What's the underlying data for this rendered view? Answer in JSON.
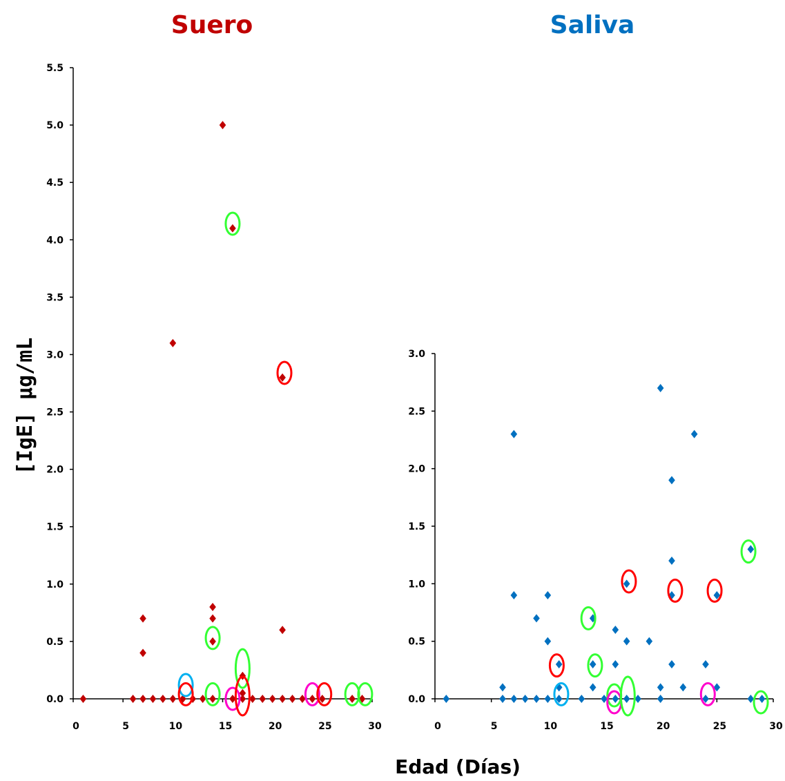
{
  "colors": {
    "serum": "#c00000",
    "saliva": "#0070c0",
    "ring_red": "#ff0000",
    "ring_green": "#33ff33",
    "ring_cyan": "#00b0f0",
    "ring_magenta": "#ff00cc"
  },
  "labels": {
    "ylabel": "[IgE] µg/mL",
    "xlabel": "Edad (Días)"
  },
  "chart_data": [
    {
      "type": "scatter",
      "title": "Suero",
      "title_color": "#c00000",
      "point_color": "#c00000",
      "xlim": [
        0,
        30
      ],
      "ylim": [
        0,
        5.5
      ],
      "xticks": [
        "0",
        "5",
        "10",
        "15",
        "20",
        "25",
        "30"
      ],
      "yticks": [
        "0.0",
        "0.5",
        "1.0",
        "1.5",
        "2.0",
        "2.5",
        "3.0",
        "3.5",
        "4.0",
        "4.5",
        "5.0",
        "5.5"
      ],
      "points": [
        [
          1,
          0
        ],
        [
          6,
          0
        ],
        [
          7,
          0
        ],
        [
          8,
          0
        ],
        [
          9,
          0
        ],
        [
          10,
          0
        ],
        [
          11,
          0
        ],
        [
          12,
          0
        ],
        [
          13,
          0
        ],
        [
          14,
          0
        ],
        [
          16,
          0
        ],
        [
          17,
          0
        ],
        [
          18,
          0
        ],
        [
          19,
          0
        ],
        [
          20,
          0
        ],
        [
          21,
          0
        ],
        [
          22,
          0
        ],
        [
          23,
          0
        ],
        [
          24,
          0
        ],
        [
          25,
          0
        ],
        [
          28,
          0
        ],
        [
          29,
          0
        ],
        [
          7,
          0.4
        ],
        [
          7,
          0.7
        ],
        [
          10,
          3.1
        ],
        [
          14,
          0.5
        ],
        [
          14,
          0.7
        ],
        [
          14,
          0.8
        ],
        [
          15,
          5.0
        ],
        [
          16,
          4.1
        ],
        [
          17,
          0.05
        ],
        [
          17,
          0.2
        ],
        [
          21,
          2.8
        ],
        [
          21,
          0.6
        ]
      ],
      "highlight_rings": [
        {
          "x": 16,
          "y": 4.14,
          "color": "green",
          "tall": false
        },
        {
          "x": 21.2,
          "y": 2.84,
          "color": "red",
          "tall": false
        },
        {
          "x": 14,
          "y": 0.53,
          "color": "green",
          "tall": false
        },
        {
          "x": 17,
          "y": 0.24,
          "color": "green",
          "tall": true
        },
        {
          "x": 11.3,
          "y": 0.12,
          "color": "cyan",
          "tall": false
        },
        {
          "x": 11.3,
          "y": 0.04,
          "color": "red",
          "tall": false
        },
        {
          "x": 14,
          "y": 0.04,
          "color": "green",
          "tall": false
        },
        {
          "x": 16,
          "y": 0.0,
          "color": "magenta",
          "tall": false
        },
        {
          "x": 17,
          "y": 0.0,
          "color": "red",
          "tall": true
        },
        {
          "x": 24,
          "y": 0.04,
          "color": "magenta",
          "tall": false
        },
        {
          "x": 25.2,
          "y": 0.04,
          "color": "red",
          "tall": false
        },
        {
          "x": 28,
          "y": 0.04,
          "color": "green",
          "tall": false
        },
        {
          "x": 29.3,
          "y": 0.04,
          "color": "green",
          "tall": false
        }
      ]
    },
    {
      "type": "scatter",
      "title": "Saliva",
      "title_color": "#0070c0",
      "point_color": "#0070c0",
      "xlim": [
        0,
        30
      ],
      "ylim": [
        0,
        3.0
      ],
      "xticks": [
        "0",
        "5",
        "10",
        "15",
        "20",
        "25",
        "30"
      ],
      "yticks": [
        "0.0",
        "0.5",
        "1.0",
        "1.5",
        "2.0",
        "2.5",
        "3.0"
      ],
      "points": [
        [
          1,
          0
        ],
        [
          6,
          0
        ],
        [
          7,
          0
        ],
        [
          8,
          0
        ],
        [
          9,
          0
        ],
        [
          10,
          0
        ],
        [
          11,
          0
        ],
        [
          13,
          0
        ],
        [
          15,
          0
        ],
        [
          16,
          0
        ],
        [
          17,
          0
        ],
        [
          18,
          0
        ],
        [
          20,
          0
        ],
        [
          24,
          0
        ],
        [
          28,
          0
        ],
        [
          29,
          0
        ],
        [
          6,
          0.1
        ],
        [
          7,
          2.3
        ],
        [
          7,
          0.9
        ],
        [
          9,
          0.7
        ],
        [
          10,
          0.9
        ],
        [
          10,
          0.5
        ],
        [
          11,
          0.3
        ],
        [
          11,
          0.1
        ],
        [
          14,
          0.7
        ],
        [
          14,
          0.3
        ],
        [
          14,
          0.1
        ],
        [
          16,
          0.6
        ],
        [
          16,
          0.3
        ],
        [
          17,
          1.0
        ],
        [
          17,
          0.5
        ],
        [
          19,
          0.5
        ],
        [
          20,
          2.7
        ],
        [
          20,
          0.1
        ],
        [
          21,
          1.9
        ],
        [
          21,
          1.2
        ],
        [
          21,
          0.9
        ],
        [
          21,
          0.3
        ],
        [
          22,
          0.1
        ],
        [
          23,
          2.3
        ],
        [
          24,
          0.3
        ],
        [
          25,
          0.9
        ],
        [
          25,
          0.1
        ],
        [
          28,
          1.3
        ]
      ],
      "highlight_rings": [
        {
          "x": 27.8,
          "y": 1.28,
          "color": "green",
          "tall": false
        },
        {
          "x": 17.2,
          "y": 1.02,
          "color": "red",
          "tall": false
        },
        {
          "x": 21.3,
          "y": 0.94,
          "color": "red",
          "tall": false
        },
        {
          "x": 24.8,
          "y": 0.94,
          "color": "red",
          "tall": false
        },
        {
          "x": 13.6,
          "y": 0.7,
          "color": "green",
          "tall": false
        },
        {
          "x": 14.2,
          "y": 0.29,
          "color": "green",
          "tall": false
        },
        {
          "x": 10.8,
          "y": 0.29,
          "color": "red",
          "tall": false
        },
        {
          "x": 11.2,
          "y": 0.04,
          "color": "cyan",
          "tall": false
        },
        {
          "x": 15.9,
          "y": 0.03,
          "color": "green",
          "tall": false
        },
        {
          "x": 15.9,
          "y": -0.03,
          "color": "magenta",
          "tall": false
        },
        {
          "x": 17.1,
          "y": 0.0,
          "color": "green",
          "tall": true
        },
        {
          "x": 24.2,
          "y": 0.04,
          "color": "magenta",
          "tall": false
        },
        {
          "x": 28.9,
          "y": -0.03,
          "color": "green",
          "tall": false
        }
      ]
    }
  ]
}
